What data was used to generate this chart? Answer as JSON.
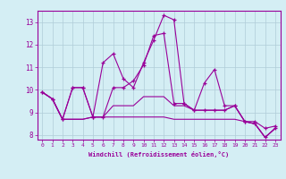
{
  "xlabel": "Windchill (Refroidissement éolien,°C)",
  "x": [
    0,
    1,
    2,
    3,
    4,
    5,
    6,
    7,
    8,
    9,
    10,
    11,
    12,
    13,
    14,
    15,
    16,
    17,
    18,
    19,
    20,
    21,
    22,
    23
  ],
  "line1": [
    9.9,
    9.6,
    8.7,
    10.1,
    10.1,
    8.8,
    11.2,
    11.6,
    10.5,
    10.1,
    11.2,
    12.2,
    13.3,
    13.1,
    9.4,
    9.1,
    10.3,
    10.9,
    9.3,
    9.3,
    8.6,
    8.6,
    8.3,
    8.4
  ],
  "line2": [
    9.9,
    9.6,
    8.7,
    10.1,
    10.1,
    8.8,
    8.8,
    10.1,
    10.1,
    10.4,
    11.1,
    12.4,
    12.5,
    9.4,
    9.4,
    9.1,
    9.1,
    9.1,
    9.1,
    9.3,
    8.6,
    8.5,
    7.9,
    8.3
  ],
  "line3": [
    9.9,
    9.6,
    8.7,
    8.7,
    8.7,
    8.8,
    8.8,
    8.8,
    8.8,
    8.8,
    8.8,
    8.8,
    8.8,
    8.7,
    8.7,
    8.7,
    8.7,
    8.7,
    8.7,
    8.7,
    8.6,
    8.5,
    7.9,
    8.3
  ],
  "line4": [
    9.9,
    9.6,
    8.7,
    8.7,
    8.7,
    8.8,
    8.8,
    9.3,
    9.3,
    9.3,
    9.7,
    9.7,
    9.7,
    9.3,
    9.3,
    9.1,
    9.1,
    9.1,
    9.1,
    9.3,
    8.6,
    8.5,
    7.9,
    8.3
  ],
  "line_color": "#990099",
  "bg_color": "#d4eef4",
  "grid_color": "#b0ccd8",
  "ylim": [
    7.8,
    13.5
  ],
  "yticks": [
    8,
    9,
    10,
    11,
    12,
    13
  ],
  "xlim": [
    -0.5,
    23.5
  ]
}
